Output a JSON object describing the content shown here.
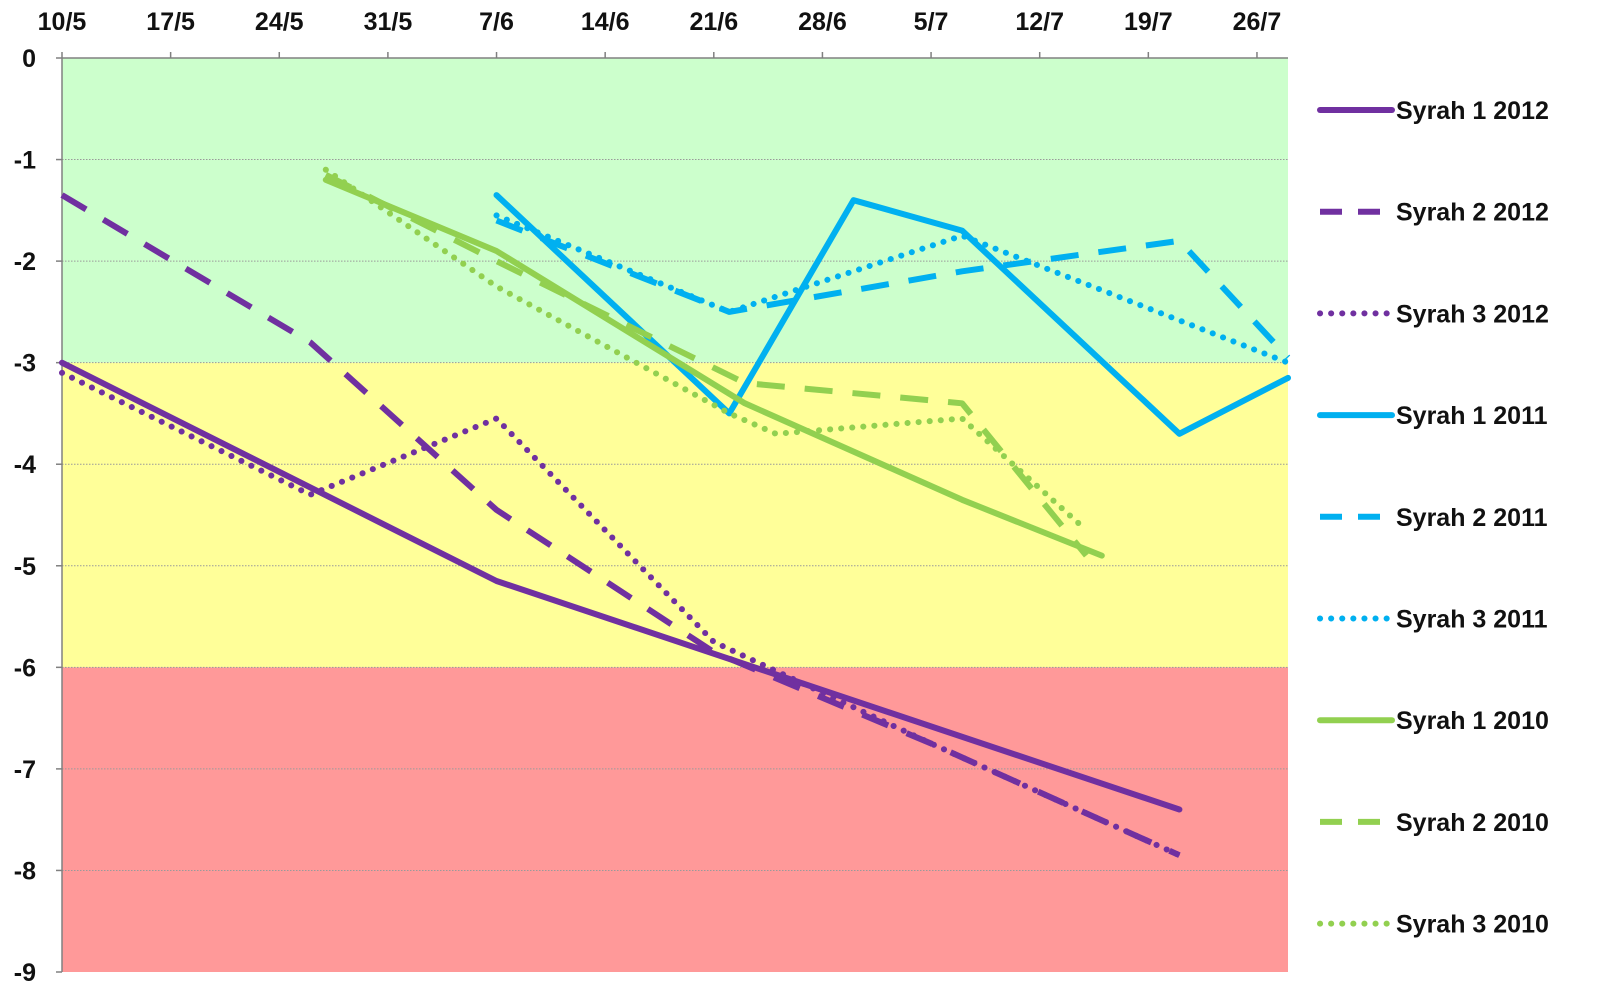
{
  "chart_data": {
    "type": "line",
    "title": "",
    "xlabel": "",
    "ylabel": "",
    "x_axis_position": "top",
    "x_ticks": [
      "10/5",
      "17/5",
      "24/5",
      "31/5",
      "7/6",
      "14/6",
      "21/6",
      "28/6",
      "5/7",
      "12/7",
      "19/7",
      "26/7"
    ],
    "x_range": [
      "10/5",
      "28/7"
    ],
    "ylim": [
      -9,
      0
    ],
    "y_ticks": [
      0,
      -1,
      -2,
      -3,
      -4,
      -5,
      -6,
      -7,
      -8,
      -9
    ],
    "grid": true,
    "legend_position": "right",
    "bands": [
      {
        "from": 0,
        "to": -3,
        "color": "#ccffcc"
      },
      {
        "from": -3,
        "to": -6,
        "color": "#ffff99"
      },
      {
        "from": -6,
        "to": -9,
        "color": "#ff9999"
      }
    ],
    "series": [
      {
        "name": "Syrah 1 2012",
        "color": "#7030a0",
        "dash": "solid",
        "points": [
          [
            "10/5",
            -3.0
          ],
          [
            "7/6",
            -5.15
          ],
          [
            "21/7",
            -7.4
          ]
        ]
      },
      {
        "name": "Syrah 2 2012",
        "color": "#7030a0",
        "dash": "dash",
        "points": [
          [
            "10/5",
            -1.35
          ],
          [
            "26/5",
            -2.8
          ],
          [
            "7/6",
            -4.45
          ],
          [
            "21/6",
            -5.85
          ],
          [
            "5/7",
            -6.75
          ],
          [
            "21/7",
            -7.85
          ]
        ]
      },
      {
        "name": "Syrah 3 2012",
        "color": "#7030a0",
        "dash": "dot",
        "points": [
          [
            "10/5",
            -3.1
          ],
          [
            "26/5",
            -4.3
          ],
          [
            "7/6",
            -3.55
          ],
          [
            "21/6",
            -5.75
          ],
          [
            "5/7",
            -6.75
          ],
          [
            "21/7",
            -7.85
          ]
        ]
      },
      {
        "name": "Syrah 1 2011",
        "color": "#00b0f0",
        "dash": "solid",
        "points": [
          [
            "7/6",
            -1.35
          ],
          [
            "22/6",
            -3.5
          ],
          [
            "30/6",
            -1.4
          ],
          [
            "7/7",
            -1.7
          ],
          [
            "21/7",
            -3.7
          ],
          [
            "28/7",
            -3.15
          ]
        ]
      },
      {
        "name": "Syrah 2 2011",
        "color": "#00b0f0",
        "dash": "dash",
        "points": [
          [
            "7/6",
            -1.6
          ],
          [
            "22/6",
            -2.5
          ],
          [
            "7/7",
            -2.1
          ],
          [
            "21/7",
            -1.8
          ],
          [
            "28/7",
            -2.95
          ]
        ]
      },
      {
        "name": "Syrah 3 2011",
        "color": "#00b0f0",
        "dash": "dot",
        "points": [
          [
            "7/6",
            -1.55
          ],
          [
            "22/6",
            -2.5
          ],
          [
            "7/7",
            -1.75
          ],
          [
            "28/7",
            -3.0
          ]
        ]
      },
      {
        "name": "Syrah 1 2010",
        "color": "#92d050",
        "dash": "solid",
        "points": [
          [
            "27/5",
            -1.2
          ],
          [
            "7/6",
            -1.9
          ],
          [
            "23/6",
            -3.4
          ],
          [
            "7/7",
            -4.35
          ],
          [
            "16/7",
            -4.9
          ]
        ]
      },
      {
        "name": "Syrah 2 2010",
        "color": "#92d050",
        "dash": "dash",
        "points": [
          [
            "27/5",
            -1.15
          ],
          [
            "7/6",
            -2.0
          ],
          [
            "23/6",
            -3.2
          ],
          [
            "7/7",
            -3.4
          ],
          [
            "15/7",
            -4.9
          ]
        ]
      },
      {
        "name": "Syrah 3 2010",
        "color": "#92d050",
        "dash": "dot",
        "points": [
          [
            "27/5",
            -1.1
          ],
          [
            "7/6",
            -2.25
          ],
          [
            "22/6",
            -3.5
          ],
          [
            "25/6",
            -3.7
          ],
          [
            "7/7",
            -3.55
          ],
          [
            "15/7",
            -4.65
          ]
        ]
      }
    ]
  }
}
